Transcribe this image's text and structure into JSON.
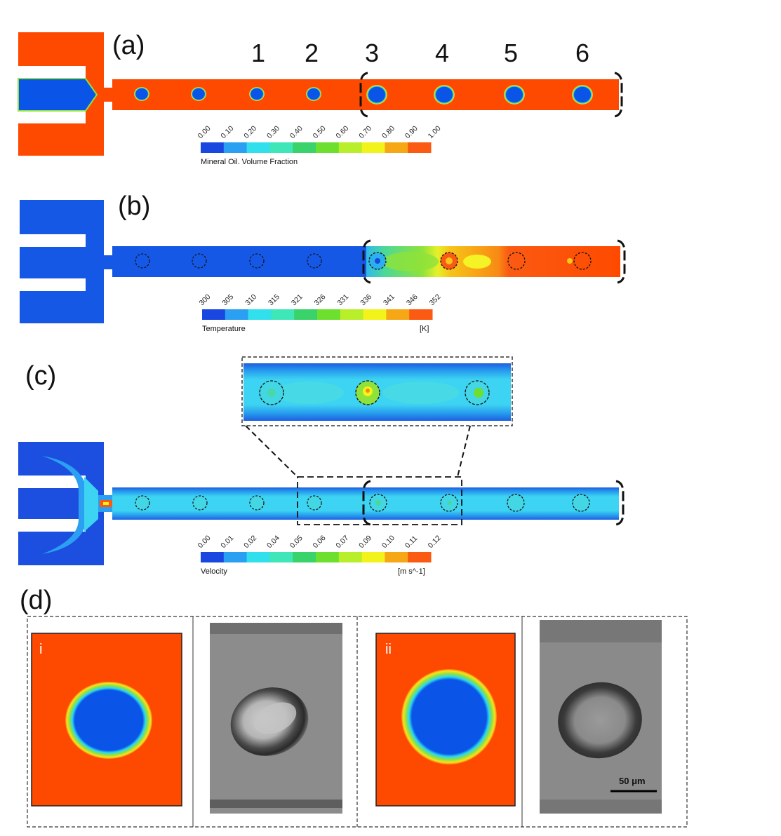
{
  "colors": {
    "oil": "#fe4a00",
    "water": "#0a55e8",
    "cold": "#1658e6",
    "velocity_bg": "#3fd6f4",
    "velocity_wall": "#1e8ee6",
    "ring_green": "#8ee043",
    "micrograph_bg": "#8a8a8a"
  },
  "colormap": [
    "#1a47e0",
    "#2b9ff2",
    "#31e0ec",
    "#3ee6b8",
    "#3ad26a",
    "#6ddf2e",
    "#b9ee2a",
    "#f3f31c",
    "#f6a716",
    "#fb5a12"
  ],
  "panel_a": {
    "label": "(a)",
    "droplet_numbers": [
      "1",
      "2",
      "3",
      "4",
      "5",
      "6"
    ],
    "colorbar": {
      "ticks": [
        "0.00",
        "0.10",
        "0.20",
        "0.30",
        "0.40",
        "0.50",
        "0.60",
        "0.70",
        "0.80",
        "0.90",
        "1.00"
      ],
      "title": "Mineral Oil. Volume Fraction",
      "unit": ""
    }
  },
  "panel_b": {
    "label": "(b)",
    "colorbar": {
      "ticks": [
        "300",
        "305",
        "310",
        "315",
        "321",
        "326",
        "331",
        "336",
        "341",
        "346",
        "352"
      ],
      "title": "Temperature",
      "unit": "[K]"
    }
  },
  "panel_c": {
    "label": "(c)",
    "colorbar": {
      "ticks": [
        "0.00",
        "0.01",
        "0.02",
        "0.04",
        "0.05",
        "0.06",
        "0.07",
        "0.09",
        "0.10",
        "0.11",
        "0.12"
      ],
      "title": "Velocity",
      "unit": "[m s^-1]"
    }
  },
  "panel_d": {
    "label": "(d)",
    "sub_i": "i",
    "sub_ii": "ii",
    "scale_bar": "50 μm"
  }
}
